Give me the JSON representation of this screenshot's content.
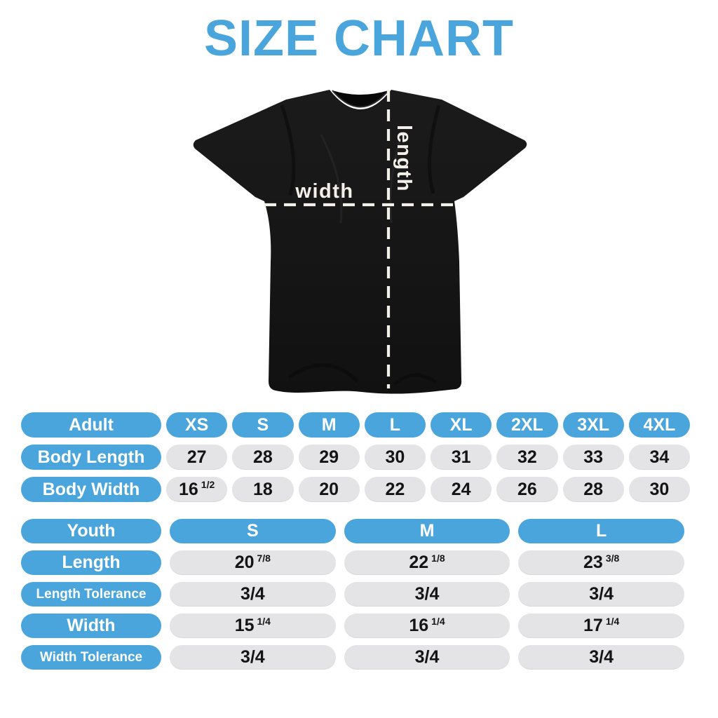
{
  "title": "SIZE CHART",
  "colors": {
    "accent_blue": "#49A5DC",
    "pill_gray": "#E4E4E6",
    "shirt_black": "#161616",
    "value_text": "#141414",
    "measure_line_white": "#F3F0E9",
    "background": "#FFFFFF"
  },
  "diagram": {
    "width_label": "width",
    "length_label": "length"
  },
  "adult_table": {
    "header_label": "Adult",
    "size_headers": [
      "XS",
      "S",
      "M",
      "L",
      "XL",
      "2XL",
      "3XL",
      "4XL"
    ],
    "rows": [
      {
        "label": "Body Length",
        "cells": [
          {
            "value": "27"
          },
          {
            "value": "28"
          },
          {
            "value": "29"
          },
          {
            "value": "30"
          },
          {
            "value": "31"
          },
          {
            "value": "32"
          },
          {
            "value": "33"
          },
          {
            "value": "34"
          }
        ]
      },
      {
        "label": "Body Width",
        "cells": [
          {
            "value": "16",
            "fraction": "1/2"
          },
          {
            "value": "18"
          },
          {
            "value": "20"
          },
          {
            "value": "22"
          },
          {
            "value": "24"
          },
          {
            "value": "26"
          },
          {
            "value": "28"
          },
          {
            "value": "30"
          }
        ]
      }
    ]
  },
  "youth_table": {
    "header_label": "Youth",
    "size_headers": [
      "S",
      "M",
      "L"
    ],
    "rows": [
      {
        "label": "Length",
        "cells": [
          {
            "value": "20",
            "fraction": "7/8"
          },
          {
            "value": "22",
            "fraction": "1/8"
          },
          {
            "value": "23",
            "fraction": "3/8"
          }
        ]
      },
      {
        "label": "Length Tolerance",
        "cells": [
          {
            "value": "3/4"
          },
          {
            "value": "3/4"
          },
          {
            "value": "3/4"
          }
        ]
      },
      {
        "label": "Width",
        "cells": [
          {
            "value": "15",
            "fraction": "1/4"
          },
          {
            "value": "16",
            "fraction": "1/4"
          },
          {
            "value": "17",
            "fraction": "1/4"
          }
        ]
      },
      {
        "label": "Width Tolerance",
        "cells": [
          {
            "value": "3/4"
          },
          {
            "value": "3/4"
          },
          {
            "value": "3/4"
          }
        ]
      }
    ]
  }
}
